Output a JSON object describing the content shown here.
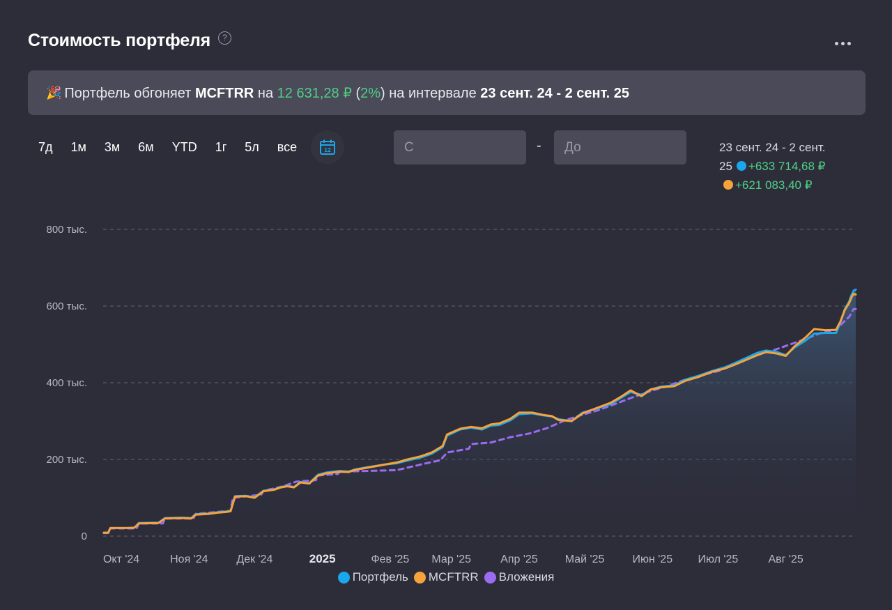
{
  "header": {
    "title": "Стоимость портфеля",
    "help_glyph": "?"
  },
  "banner": {
    "party": "🎉",
    "t1": "Портфель обгоняет ",
    "index": "MCFTRR",
    "t2": " на ",
    "amount": "12 631,28 ₽",
    "t3": " (",
    "pct": "2%",
    "t4": ") на интервале ",
    "interval": "23 сент. 24 - 2 сент. 25"
  },
  "periods": [
    "7д",
    "1м",
    "3м",
    "6м",
    "YTD",
    "1г",
    "5л",
    "все"
  ],
  "calendar": {
    "day": "12"
  },
  "date_range": {
    "from_placeholder": "С",
    "separator": "-",
    "to_placeholder": "До"
  },
  "summary": {
    "interval_line1": "23 сент. 24 - 2 сент.",
    "interval_line2": "25",
    "portfolio_change": "+633 714,68 ₽",
    "index_change": "+621 083,40 ₽"
  },
  "colors": {
    "portfolio": "#1aa7ec",
    "index": "#f6a33c",
    "investments": "#9b6cf2",
    "positive": "#4fcf86"
  },
  "chart_data": {
    "type": "line",
    "x_start": "2024-09-23",
    "x_end": "2025-09-02",
    "yticks": [
      {
        "v": 0,
        "label": "0"
      },
      {
        "v": 200000,
        "label": "200 тыс."
      },
      {
        "v": 400000,
        "label": "400 тыс."
      },
      {
        "v": 600000,
        "label": "600 тыс."
      },
      {
        "v": 800000,
        "label": "800 тыс."
      }
    ],
    "ylim": [
      0,
      800000
    ],
    "xticks": [
      {
        "date": "2024-10-01",
        "label": "Окт '24",
        "bold": false
      },
      {
        "date": "2024-11-01",
        "label": "Ноя '24",
        "bold": false
      },
      {
        "date": "2024-12-01",
        "label": "Дек '24",
        "bold": false
      },
      {
        "date": "2025-01-01",
        "label": "2025",
        "bold": true
      },
      {
        "date": "2025-02-01",
        "label": "Фев '25",
        "bold": false
      },
      {
        "date": "2025-03-01",
        "label": "Мар '25",
        "bold": false
      },
      {
        "date": "2025-04-01",
        "label": "Апр '25",
        "bold": false
      },
      {
        "date": "2025-05-01",
        "label": "Май '25",
        "bold": false
      },
      {
        "date": "2025-06-01",
        "label": "Июн '25",
        "bold": false
      },
      {
        "date": "2025-07-01",
        "label": "Июл '25",
        "bold": false
      },
      {
        "date": "2025-08-01",
        "label": "Авг '25",
        "bold": false
      }
    ],
    "grid": true,
    "legend_position": "bottom",
    "series": [
      {
        "name": "Портфель",
        "color": "#1aa7ec",
        "points": [
          [
            "2024-09-23",
            9000
          ],
          [
            "2024-09-25",
            9000
          ],
          [
            "2024-09-26",
            21000
          ],
          [
            "2024-10-04",
            21000
          ],
          [
            "2024-10-07",
            22000
          ],
          [
            "2024-10-09",
            34000
          ],
          [
            "2024-10-18",
            35000
          ],
          [
            "2024-10-21",
            47000
          ],
          [
            "2024-10-29",
            48000
          ],
          [
            "2024-11-02",
            47000
          ],
          [
            "2024-11-04",
            57000
          ],
          [
            "2024-11-10",
            59000
          ],
          [
            "2024-11-14",
            62000
          ],
          [
            "2024-11-18",
            64000
          ],
          [
            "2024-11-20",
            66000
          ],
          [
            "2024-11-21",
            85000
          ],
          [
            "2024-11-22",
            104000
          ],
          [
            "2024-11-27",
            105000
          ],
          [
            "2024-12-01",
            101000
          ],
          [
            "2024-12-05",
            118000
          ],
          [
            "2024-12-10",
            122000
          ],
          [
            "2024-12-13",
            128000
          ],
          [
            "2024-12-16",
            131000
          ],
          [
            "2024-12-19",
            128000
          ],
          [
            "2024-12-22",
            141000
          ],
          [
            "2024-12-26",
            138000
          ],
          [
            "2024-12-30",
            160000
          ],
          [
            "2025-01-03",
            166000
          ],
          [
            "2025-01-09",
            170000
          ],
          [
            "2025-01-13",
            168000
          ],
          [
            "2025-01-16",
            174000
          ],
          [
            "2025-01-22",
            180000
          ],
          [
            "2025-01-30",
            187000
          ],
          [
            "2025-02-04",
            190000
          ],
          [
            "2025-02-09",
            197000
          ],
          [
            "2025-02-15",
            205000
          ],
          [
            "2025-02-20",
            215000
          ],
          [
            "2025-02-25",
            232000
          ],
          [
            "2025-02-27",
            262000
          ],
          [
            "2025-03-05",
            278000
          ],
          [
            "2025-03-10",
            283000
          ],
          [
            "2025-03-15",
            278000
          ],
          [
            "2025-03-19",
            288000
          ],
          [
            "2025-03-23",
            290000
          ],
          [
            "2025-03-28",
            302000
          ],
          [
            "2025-04-01",
            318000
          ],
          [
            "2025-04-07",
            320000
          ],
          [
            "2025-04-12",
            315000
          ],
          [
            "2025-04-16",
            312000
          ],
          [
            "2025-04-19",
            305000
          ],
          [
            "2025-04-25",
            300000
          ],
          [
            "2025-04-30",
            322000
          ],
          [
            "2025-05-06",
            332000
          ],
          [
            "2025-05-13",
            345000
          ],
          [
            "2025-05-18",
            362000
          ],
          [
            "2025-05-22",
            376000
          ],
          [
            "2025-05-27",
            368000
          ],
          [
            "2025-05-31",
            382000
          ],
          [
            "2025-06-05",
            390000
          ],
          [
            "2025-06-11",
            393000
          ],
          [
            "2025-06-16",
            408000
          ],
          [
            "2025-06-22",
            418000
          ],
          [
            "2025-06-28",
            430000
          ],
          [
            "2025-07-04",
            440000
          ],
          [
            "2025-07-09",
            452000
          ],
          [
            "2025-07-14",
            465000
          ],
          [
            "2025-07-19",
            478000
          ],
          [
            "2025-07-23",
            484000
          ],
          [
            "2025-07-28",
            480000
          ],
          [
            "2025-08-01",
            472000
          ],
          [
            "2025-08-05",
            492000
          ],
          [
            "2025-08-10",
            510000
          ],
          [
            "2025-08-14",
            528000
          ],
          [
            "2025-08-19",
            530000
          ],
          [
            "2025-08-24",
            530000
          ],
          [
            "2025-08-26",
            558000
          ],
          [
            "2025-08-28",
            592000
          ],
          [
            "2025-08-30",
            612000
          ],
          [
            "2025-08-31",
            628000
          ],
          [
            "2025-09-01",
            640000
          ],
          [
            "2025-09-02",
            643000
          ]
        ]
      },
      {
        "name": "MCFTRR",
        "color": "#f6a33c",
        "points": [
          [
            "2024-09-23",
            9000
          ],
          [
            "2024-09-25",
            9000
          ],
          [
            "2024-09-26",
            21000
          ],
          [
            "2024-10-04",
            21000
          ],
          [
            "2024-10-07",
            22000
          ],
          [
            "2024-10-09",
            33000
          ],
          [
            "2024-10-18",
            34000
          ],
          [
            "2024-10-21",
            46000
          ],
          [
            "2024-10-29",
            47000
          ],
          [
            "2024-11-02",
            46000
          ],
          [
            "2024-11-04",
            56000
          ],
          [
            "2024-11-10",
            58000
          ],
          [
            "2024-11-14",
            61000
          ],
          [
            "2024-11-18",
            63000
          ],
          [
            "2024-11-20",
            65000
          ],
          [
            "2024-11-21",
            84000
          ],
          [
            "2024-11-22",
            103000
          ],
          [
            "2024-11-27",
            104000
          ],
          [
            "2024-12-01",
            100000
          ],
          [
            "2024-12-05",
            117000
          ],
          [
            "2024-12-10",
            121000
          ],
          [
            "2024-12-13",
            127000
          ],
          [
            "2024-12-16",
            130000
          ],
          [
            "2024-12-19",
            127000
          ],
          [
            "2024-12-22",
            140000
          ],
          [
            "2024-12-26",
            137000
          ],
          [
            "2024-12-30",
            158000
          ],
          [
            "2025-01-03",
            164000
          ],
          [
            "2025-01-09",
            168000
          ],
          [
            "2025-01-13",
            167000
          ],
          [
            "2025-01-16",
            173000
          ],
          [
            "2025-01-22",
            179000
          ],
          [
            "2025-01-30",
            187000
          ],
          [
            "2025-02-04",
            192000
          ],
          [
            "2025-02-09",
            200000
          ],
          [
            "2025-02-15",
            208000
          ],
          [
            "2025-02-20",
            218000
          ],
          [
            "2025-02-25",
            235000
          ],
          [
            "2025-02-27",
            265000
          ],
          [
            "2025-03-05",
            280000
          ],
          [
            "2025-03-10",
            285000
          ],
          [
            "2025-03-15",
            281000
          ],
          [
            "2025-03-19",
            291000
          ],
          [
            "2025-03-23",
            294000
          ],
          [
            "2025-03-28",
            306000
          ],
          [
            "2025-04-01",
            322000
          ],
          [
            "2025-04-07",
            322000
          ],
          [
            "2025-04-12",
            316000
          ],
          [
            "2025-04-16",
            313000
          ],
          [
            "2025-04-19",
            303000
          ],
          [
            "2025-04-25",
            300000
          ],
          [
            "2025-04-30",
            320000
          ],
          [
            "2025-05-06",
            333000
          ],
          [
            "2025-05-13",
            348000
          ],
          [
            "2025-05-18",
            365000
          ],
          [
            "2025-05-22",
            380000
          ],
          [
            "2025-05-27",
            365000
          ],
          [
            "2025-05-31",
            382000
          ],
          [
            "2025-06-05",
            388000
          ],
          [
            "2025-06-11",
            391000
          ],
          [
            "2025-06-16",
            405000
          ],
          [
            "2025-06-22",
            415000
          ],
          [
            "2025-06-28",
            428000
          ],
          [
            "2025-07-04",
            437000
          ],
          [
            "2025-07-09",
            448000
          ],
          [
            "2025-07-14",
            460000
          ],
          [
            "2025-07-19",
            472000
          ],
          [
            "2025-07-23",
            480000
          ],
          [
            "2025-07-28",
            476000
          ],
          [
            "2025-08-01",
            470000
          ],
          [
            "2025-08-05",
            495000
          ],
          [
            "2025-08-10",
            518000
          ],
          [
            "2025-08-14",
            540000
          ],
          [
            "2025-08-19",
            537000
          ],
          [
            "2025-08-24",
            538000
          ],
          [
            "2025-08-26",
            560000
          ],
          [
            "2025-08-28",
            590000
          ],
          [
            "2025-08-30",
            608000
          ],
          [
            "2025-08-31",
            622000
          ],
          [
            "2025-09-01",
            632000
          ],
          [
            "2025-09-02",
            630000
          ]
        ]
      },
      {
        "name": "Вложения",
        "color": "#9b6cf2",
        "dashed": true,
        "points": [
          [
            "2024-09-23",
            8000
          ],
          [
            "2024-09-25",
            8000
          ],
          [
            "2024-09-26",
            20000
          ],
          [
            "2024-10-08",
            20000
          ],
          [
            "2024-10-09",
            33000
          ],
          [
            "2024-10-20",
            33000
          ],
          [
            "2024-10-21",
            46000
          ],
          [
            "2024-11-03",
            46000
          ],
          [
            "2024-11-04",
            58000
          ],
          [
            "2024-11-20",
            66000
          ],
          [
            "2024-11-21",
            100000
          ],
          [
            "2024-12-04",
            108000
          ],
          [
            "2024-12-05",
            118000
          ],
          [
            "2024-12-14",
            130000
          ],
          [
            "2024-12-20",
            142000
          ],
          [
            "2024-12-29",
            146000
          ],
          [
            "2024-12-30",
            158000
          ],
          [
            "2025-01-08",
            162000
          ],
          [
            "2025-01-09",
            168000
          ],
          [
            "2025-02-04",
            172000
          ],
          [
            "2025-02-16",
            188000
          ],
          [
            "2025-02-24",
            198000
          ],
          [
            "2025-02-27",
            218000
          ],
          [
            "2025-03-09",
            228000
          ],
          [
            "2025-03-10",
            240000
          ],
          [
            "2025-03-19",
            244000
          ],
          [
            "2025-03-28",
            258000
          ],
          [
            "2025-04-06",
            268000
          ],
          [
            "2025-04-14",
            282000
          ],
          [
            "2025-04-22",
            302000
          ],
          [
            "2025-04-29",
            315000
          ],
          [
            "2025-05-07",
            328000
          ],
          [
            "2025-05-15",
            345000
          ],
          [
            "2025-05-22",
            360000
          ],
          [
            "2025-05-31",
            378000
          ],
          [
            "2025-06-08",
            392000
          ],
          [
            "2025-06-16",
            408000
          ],
          [
            "2025-06-24",
            420000
          ],
          [
            "2025-07-02",
            432000
          ],
          [
            "2025-07-10",
            455000
          ],
          [
            "2025-07-18",
            472000
          ],
          [
            "2025-07-26",
            484000
          ],
          [
            "2025-08-03",
            500000
          ],
          [
            "2025-08-10",
            514000
          ],
          [
            "2025-08-17",
            530000
          ],
          [
            "2025-08-24",
            538000
          ],
          [
            "2025-08-27",
            556000
          ],
          [
            "2025-08-30",
            572000
          ],
          [
            "2025-09-01",
            592000
          ],
          [
            "2025-09-02",
            592000
          ]
        ]
      }
    ]
  }
}
